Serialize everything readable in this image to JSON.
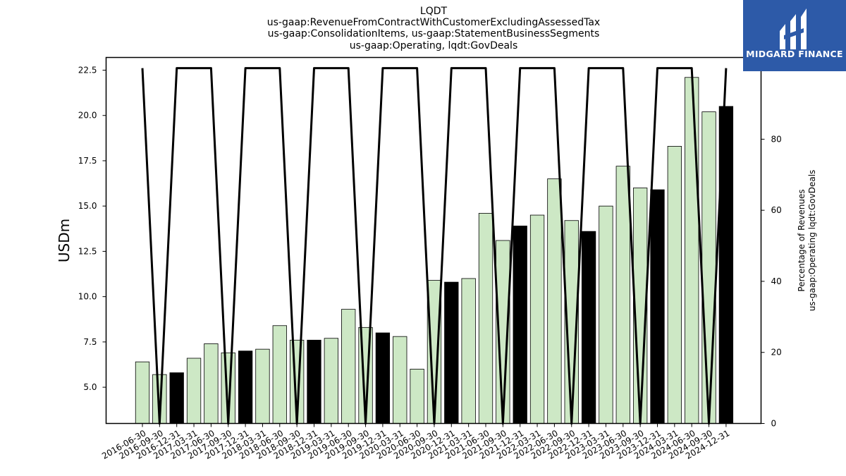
{
  "chart_data": {
    "type": "bar",
    "title": [
      "LQDT",
      "us-gaap:RevenueFromContractWithCustomerExcludingAssessedTax",
      "us-gaap:ConsolidationItems, us-gaap:StatementBusinessSegments",
      "us-gaap:Operating, lqdt:GovDeals"
    ],
    "ylabel": "USDm",
    "ylabel_right": [
      "Percentage of Revenues",
      "us-gaap:Operating lqdt:GovDeals"
    ],
    "ylim": [
      3.0,
      23.2
    ],
    "y2lim": [
      0,
      103
    ],
    "yticks": [
      5.0,
      7.5,
      10.0,
      12.5,
      15.0,
      17.5,
      20.0,
      22.5
    ],
    "yticks_right": [
      0,
      20,
      40,
      60,
      80,
      100
    ],
    "grid": false,
    "colors": {
      "light_bar": "#cde8c5",
      "dark_bar": "#000000",
      "line": "#000000"
    },
    "categories": [
      "2016-06-30",
      "2016-09-30",
      "2016-12-31",
      "2017-03-31",
      "2017-06-30",
      "2017-09-30",
      "2017-12-31",
      "2018-03-31",
      "2018-06-30",
      "2018-09-30",
      "2018-12-31",
      "2019-03-31",
      "2019-06-30",
      "2019-09-30",
      "2019-12-31",
      "2020-03-31",
      "2020-06-30",
      "2020-09-30",
      "2020-12-31",
      "2021-03-31",
      "2021-06-30",
      "2021-09-30",
      "2021-12-31",
      "2022-03-31",
      "2022-06-30",
      "2022-09-30",
      "2022-12-31",
      "2023-03-31",
      "2023-06-30",
      "2023-09-30",
      "2023-12-31",
      "2024-03-31",
      "2024-06-30",
      "2024-09-30",
      "2024-12-31"
    ],
    "values": [
      6.4,
      5.7,
      5.8,
      6.6,
      7.4,
      6.9,
      7.0,
      7.1,
      8.4,
      7.6,
      7.6,
      7.7,
      9.3,
      8.3,
      8.0,
      7.8,
      6.0,
      10.9,
      10.8,
      11.0,
      14.6,
      13.1,
      13.9,
      14.5,
      16.5,
      14.2,
      13.6,
      15.0,
      17.2,
      16.0,
      15.9,
      18.3,
      22.1,
      20.2,
      20.5
    ],
    "dark": [
      false,
      false,
      true,
      false,
      false,
      false,
      true,
      false,
      false,
      false,
      true,
      false,
      false,
      false,
      true,
      false,
      false,
      false,
      true,
      false,
      false,
      false,
      true,
      false,
      false,
      false,
      true,
      false,
      false,
      false,
      true,
      false,
      false,
      false,
      true
    ],
    "percent": [
      100,
      0,
      100,
      100,
      100,
      0,
      100,
      100,
      100,
      0,
      100,
      100,
      100,
      0,
      100,
      100,
      100,
      0,
      100,
      100,
      100,
      0,
      100,
      100,
      100,
      0,
      100,
      100,
      100,
      0,
      100,
      100,
      100,
      0,
      100
    ]
  },
  "logo": {
    "text": "MIDGARD FINANCE",
    "background": "#2d5aa8"
  }
}
